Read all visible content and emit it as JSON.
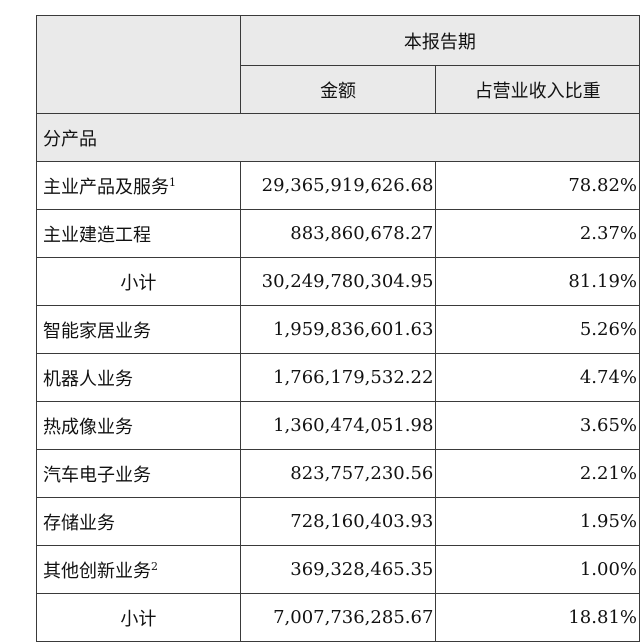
{
  "header": {
    "period": "本报告期",
    "amount": "金额",
    "share": "占营业收入比重"
  },
  "section_title": "分产品",
  "rows": [
    {
      "label": "主业产品及服务",
      "sup": "1",
      "amount": "29,365,919,626.68",
      "share": "78.82%",
      "type": "item"
    },
    {
      "label": "主业建造工程",
      "sup": "",
      "amount": "883,860,678.27",
      "share": "2.37%",
      "type": "item"
    },
    {
      "label": "小计",
      "sup": "",
      "amount": "30,249,780,304.95",
      "share": "81.19%",
      "type": "subtotal"
    },
    {
      "label": "智能家居业务",
      "sup": "",
      "amount": "1,959,836,601.63",
      "share": "5.26%",
      "type": "item"
    },
    {
      "label": "机器人业务",
      "sup": "",
      "amount": "1,766,179,532.22",
      "share": "4.74%",
      "type": "item"
    },
    {
      "label": "热成像业务",
      "sup": "",
      "amount": "1,360,474,051.98",
      "share": "3.65%",
      "type": "item"
    },
    {
      "label": "汽车电子业务",
      "sup": "",
      "amount": "823,757,230.56",
      "share": "2.21%",
      "type": "item"
    },
    {
      "label": "存储业务",
      "sup": "",
      "amount": "728,160,403.93",
      "share": "1.95%",
      "type": "item"
    },
    {
      "label": "其他创新业务",
      "sup": "2",
      "amount": "369,328,465.35",
      "share": "1.00%",
      "type": "item"
    },
    {
      "label": "小计",
      "sup": "",
      "amount": "7,007,736,285.67",
      "share": "18.81%",
      "type": "subtotal"
    }
  ]
}
